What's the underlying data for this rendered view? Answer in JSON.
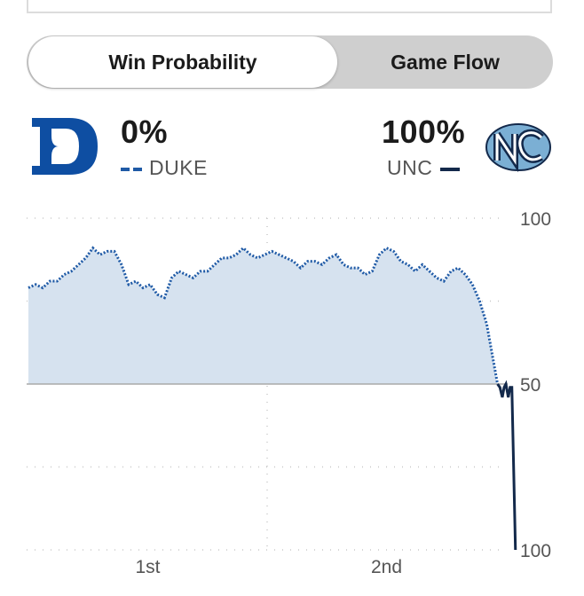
{
  "tabs": [
    {
      "label": "Win Probability",
      "active": true
    },
    {
      "label": "Game Flow",
      "active": false
    }
  ],
  "teams": {
    "away": {
      "name": "DUKE",
      "probability": "0%",
      "line_style": "dashed",
      "color": "#1f5aa6",
      "logo": "duke-d-logo"
    },
    "home": {
      "name": "UNC",
      "probability": "100%",
      "line_style": "solid",
      "color": "#13294b",
      "logo": "unc-nc-logo"
    }
  },
  "chart_data": {
    "type": "line",
    "x_unit": "game minutes (0-40)",
    "y_unit": "win probability of team shown above the 50 line",
    "ylim_labels": [
      "100",
      "50",
      "100"
    ],
    "xtick_labels": [
      {
        "label": "1st",
        "x": 10
      },
      {
        "label": "2nd",
        "x": 30
      }
    ],
    "grid": true,
    "fill_color": "#d6e2ef",
    "series": [
      {
        "name": "DUKE",
        "style": "dotted",
        "color": "#1f5aa6",
        "x": [
          0,
          0.6,
          1.2,
          1.8,
          2.4,
          3.0,
          3.6,
          4.2,
          4.8,
          5.4,
          6.0,
          6.6,
          7.2,
          7.8,
          8.4,
          9.0,
          9.6,
          10.2,
          10.8,
          11.4,
          12.0,
          12.6,
          13.2,
          13.8,
          14.4,
          15.0,
          15.6,
          16.2,
          16.8,
          17.4,
          18.0,
          18.6,
          19.2,
          19.8,
          20.4,
          21.0,
          21.6,
          22.2,
          22.8,
          23.4,
          24.0,
          24.6,
          25.2,
          25.8,
          26.4,
          27.0,
          27.6,
          28.2,
          28.8,
          29.4,
          30.0,
          30.6,
          31.2,
          31.8,
          32.4,
          33.0,
          33.6,
          34.2,
          34.8,
          35.4,
          36.0,
          36.6,
          37.2,
          37.8,
          38.4,
          38.9,
          39.3
        ],
        "y": [
          79,
          80,
          79,
          81,
          81,
          83,
          84,
          86,
          88,
          91,
          89,
          90,
          90,
          86,
          80,
          81,
          79,
          80,
          77,
          76,
          82,
          84,
          83,
          82,
          84,
          84,
          86,
          88,
          88,
          89,
          91,
          89,
          88,
          89,
          90,
          89,
          88,
          87,
          85,
          87,
          87,
          86,
          88,
          89,
          86,
          85,
          85,
          83,
          84,
          89,
          91,
          90,
          87,
          86,
          84,
          86,
          84,
          82,
          81,
          84,
          85,
          83,
          80,
          75,
          68,
          58,
          50
        ]
      },
      {
        "name": "UNC",
        "style": "solid",
        "color": "#13294b",
        "x": [
          39.3,
          39.5,
          39.7,
          39.85,
          40.0,
          40.2,
          40.35,
          40.5,
          40.8
        ],
        "y": [
          50,
          49,
          46,
          49,
          50,
          46,
          49,
          49,
          0
        ]
      }
    ]
  }
}
